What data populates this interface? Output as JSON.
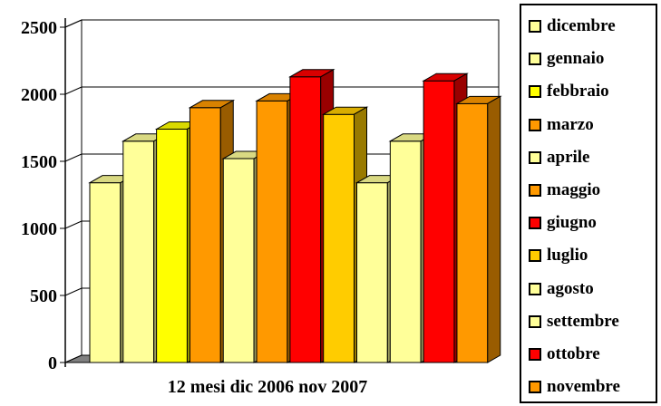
{
  "chart_data": {
    "type": "bar",
    "title": "",
    "xlabel": "12 mesi dic 2006 nov 2007",
    "ylabel": "",
    "ylim": [
      0,
      2500
    ],
    "yticks": [
      0,
      500,
      1000,
      1500,
      2000,
      2500
    ],
    "grid": true,
    "legend_placement": "right",
    "categories": [
      "dicembre",
      "gennaio",
      "febbraio",
      "marzo",
      "aprile",
      "maggio",
      "giugno",
      "luglio",
      "agosto",
      "settembre",
      "ottobre",
      "novembre"
    ],
    "values": [
      1340,
      1650,
      1740,
      1900,
      1520,
      1950,
      2130,
      1850,
      1340,
      1650,
      2100,
      1930
    ],
    "colors": [
      "#FFFF99",
      "#FFFF99",
      "#FFFF00",
      "#FF9900",
      "#FFFF99",
      "#FF9900",
      "#FF0000",
      "#FFCC00",
      "#FFFF99",
      "#FFFF99",
      "#FF0000",
      "#FF9900"
    ]
  }
}
